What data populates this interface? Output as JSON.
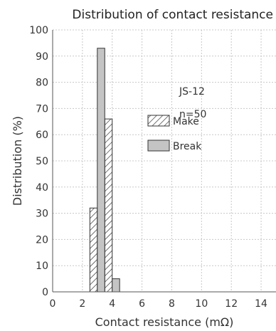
{
  "chart_data": {
    "type": "bar",
    "title": "Distribution of contact resistance",
    "xlabel": "Contact resistance (mΩ)",
    "ylabel": "Distribution (%)",
    "xlim": [
      0,
      15
    ],
    "ylim": [
      0,
      100
    ],
    "x_ticks": [
      0,
      2,
      4,
      6,
      8,
      10,
      12,
      14
    ],
    "y_ticks": [
      0,
      10,
      20,
      30,
      40,
      50,
      60,
      70,
      80,
      90,
      100
    ],
    "grid": true,
    "annotations": [
      "JS-12",
      "n=50"
    ],
    "legend_position": "right",
    "series": [
      {
        "name": "Make",
        "pattern": "hatched",
        "color": "#ffffff",
        "points": [
          {
            "x_start": 2.5,
            "x_end": 3.0,
            "value": 32
          },
          {
            "x_start": 3.5,
            "x_end": 4.0,
            "value": 66
          }
        ]
      },
      {
        "name": "Break",
        "pattern": "solid",
        "color": "#c4c4c4",
        "points": [
          {
            "x_start": 3.0,
            "x_end": 3.5,
            "value": 93
          },
          {
            "x_start": 4.0,
            "x_end": 4.5,
            "value": 5
          }
        ]
      }
    ]
  }
}
